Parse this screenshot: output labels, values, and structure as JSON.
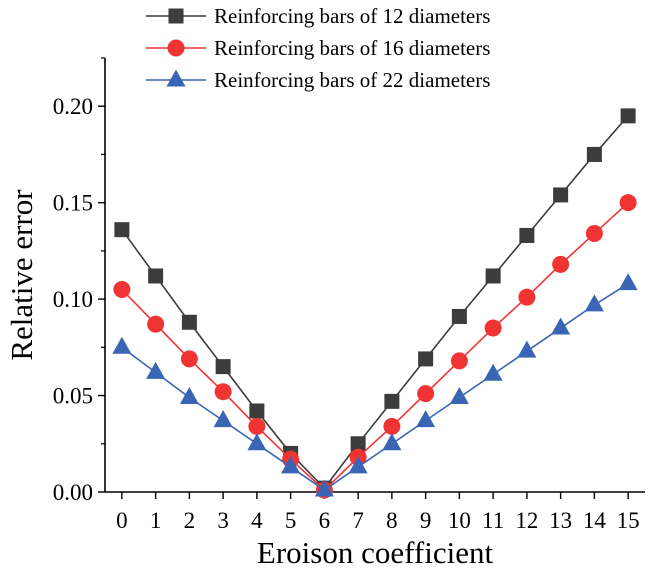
{
  "chart_data": {
    "type": "line",
    "title": "",
    "xlabel": "Eroison coefficient",
    "ylabel": "Relative error",
    "categories": [
      "0",
      "1",
      "2",
      "3",
      "4",
      "5",
      "6",
      "7",
      "8",
      "9",
      "10",
      "11",
      "12",
      "13",
      "14",
      "15"
    ],
    "x": [
      0,
      1,
      2,
      3,
      4,
      5,
      6,
      7,
      8,
      9,
      10,
      11,
      12,
      13,
      14,
      15
    ],
    "xlim": [
      -0.5,
      15.5
    ],
    "ylim": [
      0.0,
      0.225
    ],
    "yticks": [
      0.0,
      0.05,
      0.1,
      0.15,
      0.2
    ],
    "ytick_labels": [
      "0.00",
      "0.05",
      "0.10",
      "0.15",
      "0.20"
    ],
    "grid": false,
    "legend_position": "top-center",
    "series": [
      {
        "name": "Reinforcing bars of 12 diameters",
        "marker": "square",
        "color": "#3c3c3c",
        "values": [
          0.136,
          0.112,
          0.088,
          0.065,
          0.042,
          0.02,
          0.002,
          0.025,
          0.047,
          0.069,
          0.091,
          0.112,
          0.133,
          0.154,
          0.175,
          0.195
        ]
      },
      {
        "name": "Reinforcing bars of 16 diameters",
        "marker": "circle",
        "color": "#f03434",
        "values": [
          0.105,
          0.087,
          0.069,
          0.052,
          0.034,
          0.017,
          0.001,
          0.018,
          0.034,
          0.051,
          0.068,
          0.085,
          0.101,
          0.118,
          0.134,
          0.15
        ]
      },
      {
        "name": "Reinforcing bars of 22 diameters",
        "marker": "triangle",
        "color": "#3a64b4",
        "values": [
          0.075,
          0.062,
          0.049,
          0.037,
          0.025,
          0.013,
          0.001,
          0.013,
          0.025,
          0.037,
          0.049,
          0.061,
          0.073,
          0.085,
          0.097,
          0.108
        ]
      }
    ]
  }
}
